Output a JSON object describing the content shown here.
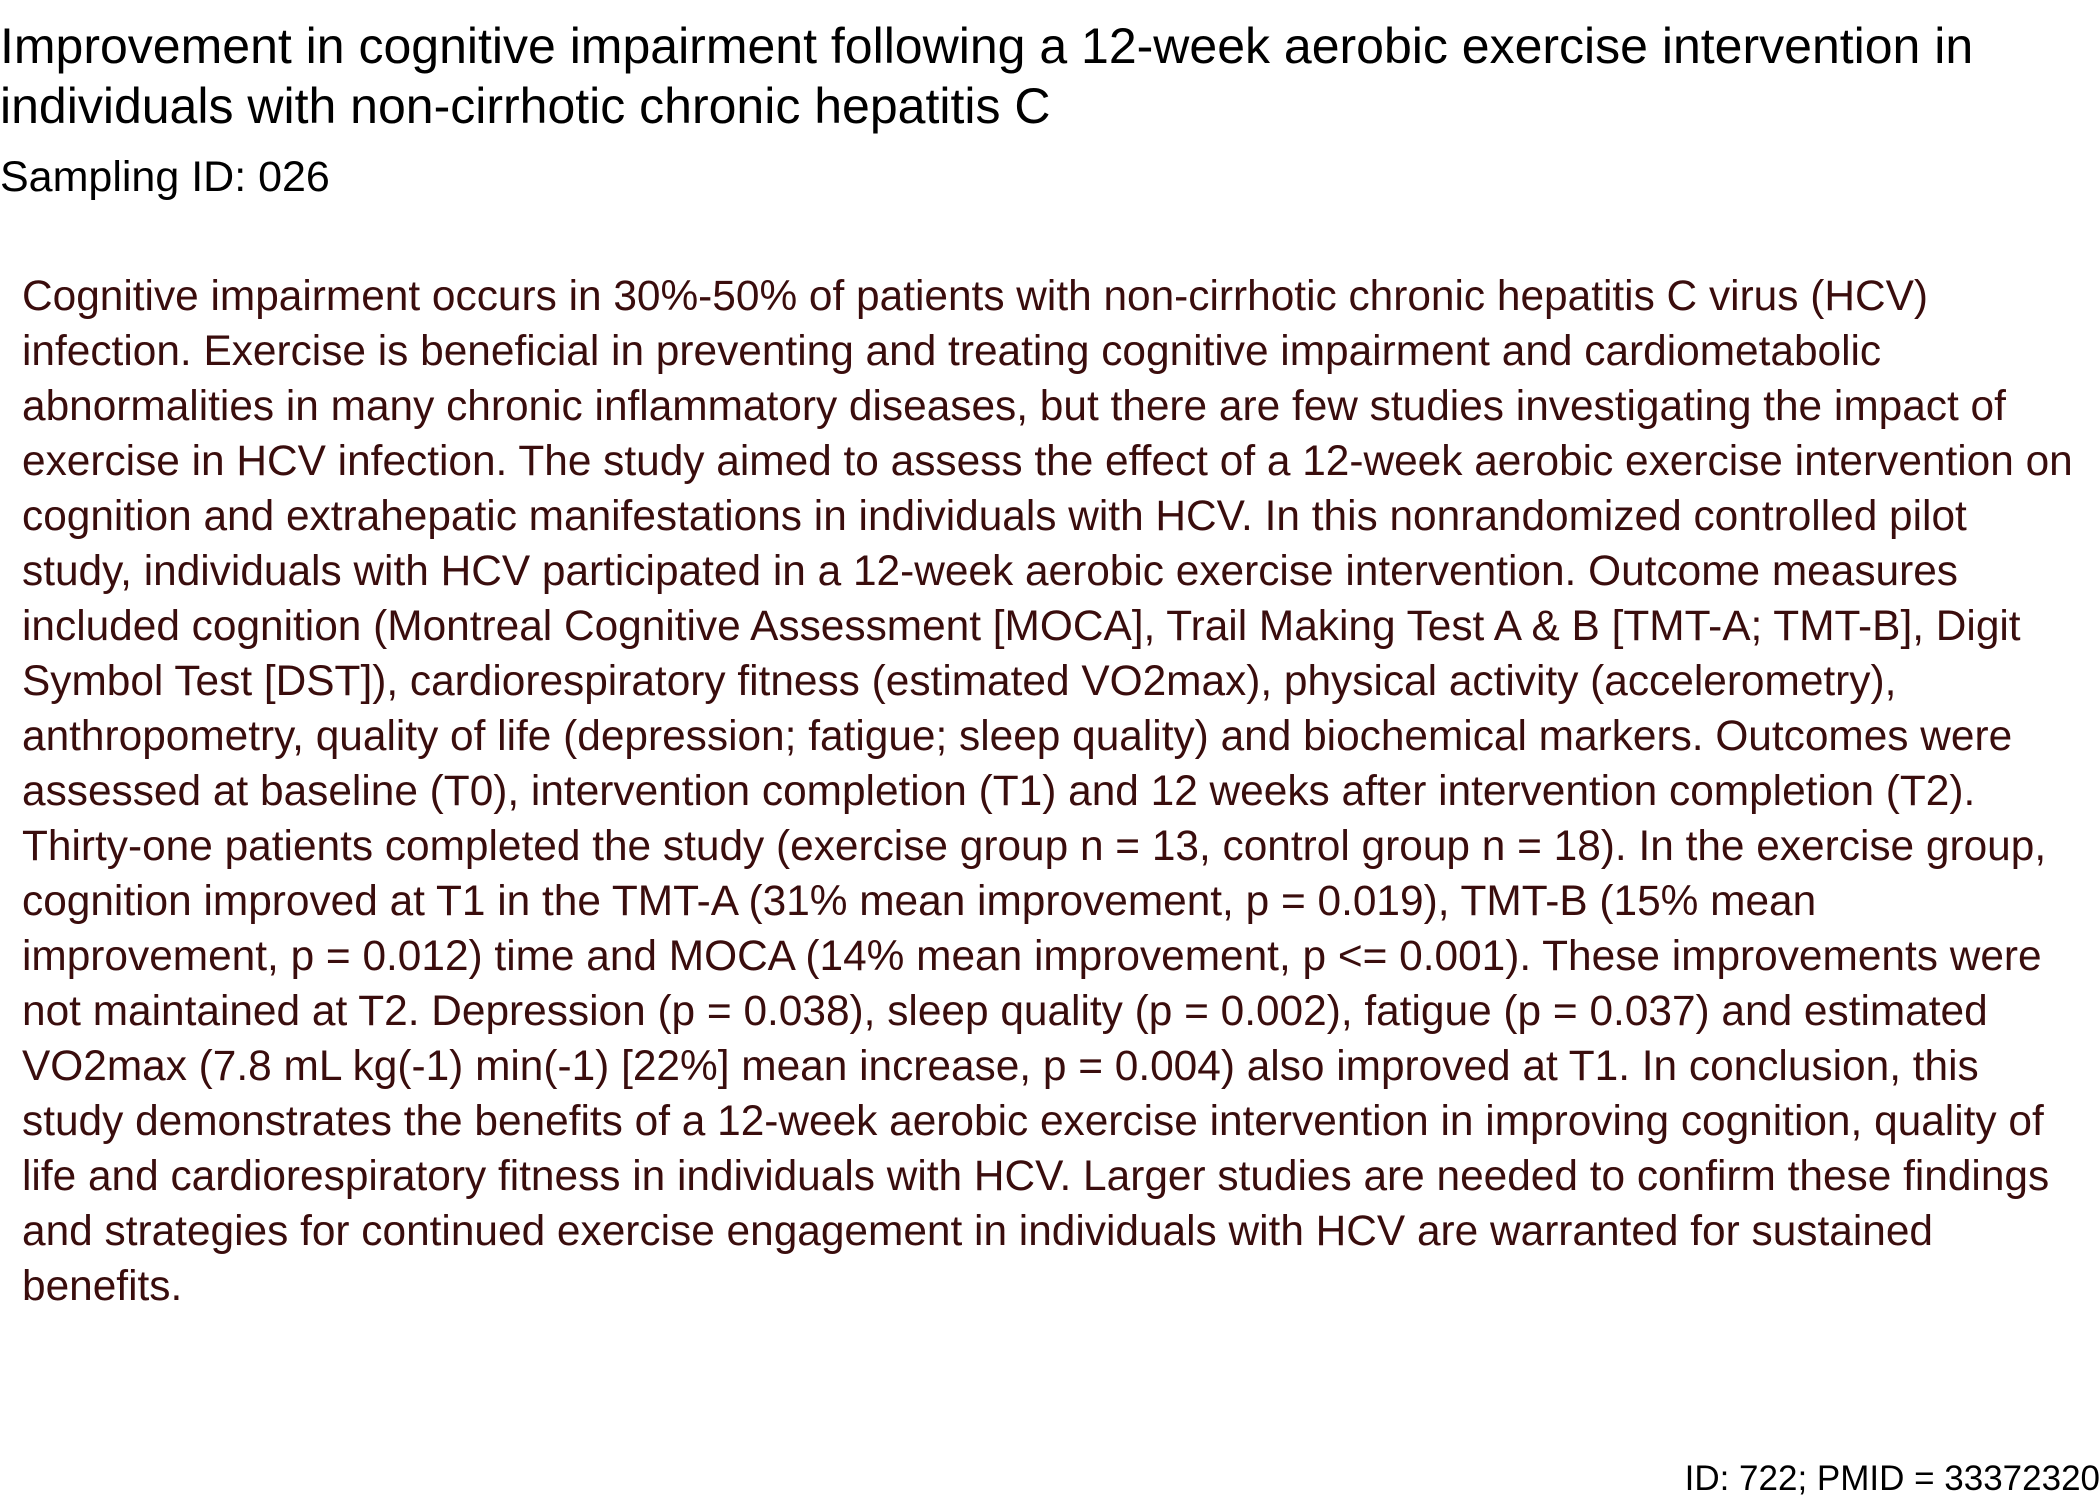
{
  "document": {
    "title": "Improvement in cognitive impairment following a 12-week aerobic exercise intervention in individuals with non-cirrhotic chronic hepatitis C",
    "sampling_id": "Sampling ID: 026",
    "abstract": "Cognitive impairment occurs in 30%-50% of patients with non-cirrhotic chronic hepatitis C virus (HCV) infection. Exercise is beneficial in preventing and treating cognitive impairment and cardiometabolic abnormalities in many chronic inflammatory diseases, but there are few studies investigating the impact of exercise in HCV infection. The study aimed to assess the effect of a 12-week aerobic exercise intervention on cognition and extrahepatic manifestations in individuals with HCV. In this nonrandomized controlled pilot study, individuals with HCV participated in a 12-week aerobic exercise intervention. Outcome measures included cognition (Montreal Cognitive Assessment [MOCA], Trail Making Test A & B [TMT-A; TMT-B], Digit Symbol Test [DST]), cardiorespiratory fitness (estimated VO2max), physical activity (accelerometry), anthropometry, quality of life (depression; fatigue; sleep quality) and biochemical markers. Outcomes were assessed at baseline (T0), intervention completion (T1) and 12 weeks after intervention completion (T2). Thirty-one patients completed the study (exercise group n = 13, control group n = 18). In the exercise group, cognition improved at T1 in the TMT-A (31% mean improvement, p = 0.019), TMT-B (15% mean improvement, p = 0.012) time and MOCA (14% mean improvement, p <= 0.001). These improvements were not maintained at T2. Depression (p = 0.038), sleep quality (p = 0.002), fatigue (p = 0.037) and estimated VO2max (7.8 mL kg(-1) min(-1) [22%] mean increase, p = 0.004) also improved at T1. In conclusion, this study demonstrates the benefits of a 12-week aerobic exercise intervention in improving cognition, quality of life and cardiorespiratory fitness in individuals with HCV. Larger studies are needed to confirm these findings and strategies for continued exercise engagement in individuals with HCV are warranted for sustained benefits.",
    "footer_id": "ID: 722; PMID = 33372320"
  },
  "colors": {
    "title_text": "#000000",
    "abstract_text": "#3a0d0d",
    "background": "#ffffff"
  }
}
